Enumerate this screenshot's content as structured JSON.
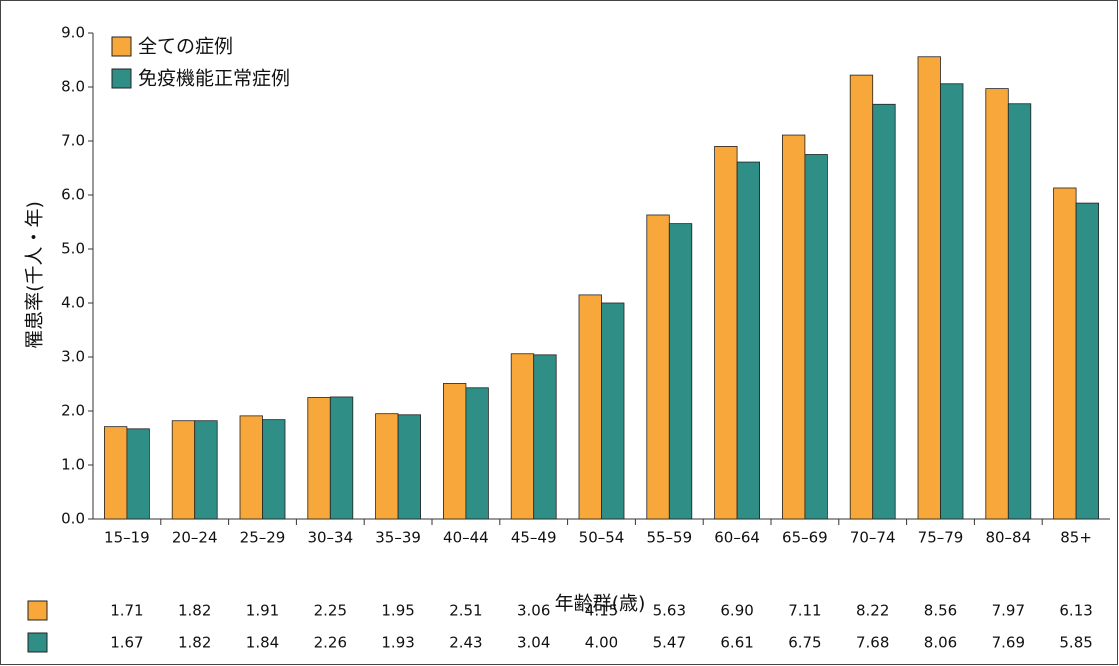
{
  "chart_data": {
    "type": "bar",
    "xlabel": "年齢群(歳)",
    "ylabel": "罹患率(千人・年)",
    "categories": [
      "15–19",
      "20–24",
      "25–29",
      "30–34",
      "35–39",
      "40–44",
      "45–49",
      "50–54",
      "55–59",
      "60–64",
      "65–69",
      "70–74",
      "75–79",
      "80–84",
      "85+"
    ],
    "series": [
      {
        "name": "全ての症例",
        "color": "#f8a83b",
        "values": [
          1.71,
          1.82,
          1.91,
          2.25,
          1.95,
          2.51,
          3.06,
          4.15,
          5.63,
          6.9,
          7.11,
          8.22,
          8.56,
          7.97,
          6.13
        ],
        "value_labels": [
          "1.71",
          "1.82",
          "1.91",
          "2.25",
          "1.95",
          "2.51",
          "3.06",
          "4.15",
          "5.63",
          "6.90",
          "7.11",
          "8.22",
          "8.56",
          "7.97",
          "6.13"
        ]
      },
      {
        "name": "免疫機能正常症例",
        "color": "#2f8e86",
        "values": [
          1.67,
          1.82,
          1.84,
          2.26,
          1.93,
          2.43,
          3.04,
          4.0,
          5.47,
          6.61,
          6.75,
          7.68,
          8.06,
          7.69,
          5.85
        ],
        "value_labels": [
          "1.67",
          "1.82",
          "1.84",
          "2.26",
          "1.93",
          "2.43",
          "3.04",
          "4.00",
          "5.47",
          "6.61",
          "6.75",
          "7.68",
          "8.06",
          "7.69",
          "5.85"
        ]
      }
    ],
    "ylim": [
      0,
      9
    ],
    "yticks": [
      {
        "value": 0,
        "label": "0.0"
      },
      {
        "value": 1,
        "label": "1.0"
      },
      {
        "value": 2,
        "label": "2.0"
      },
      {
        "value": 3,
        "label": "3.0"
      },
      {
        "value": 4,
        "label": "4.0"
      },
      {
        "value": 5,
        "label": "5.0"
      },
      {
        "value": 6,
        "label": "6.0"
      },
      {
        "value": 7,
        "label": "7.0"
      },
      {
        "value": 8,
        "label": "8.0"
      },
      {
        "value": 9,
        "label": "9.0"
      }
    ],
    "grid": false,
    "legend": "upper left"
  }
}
